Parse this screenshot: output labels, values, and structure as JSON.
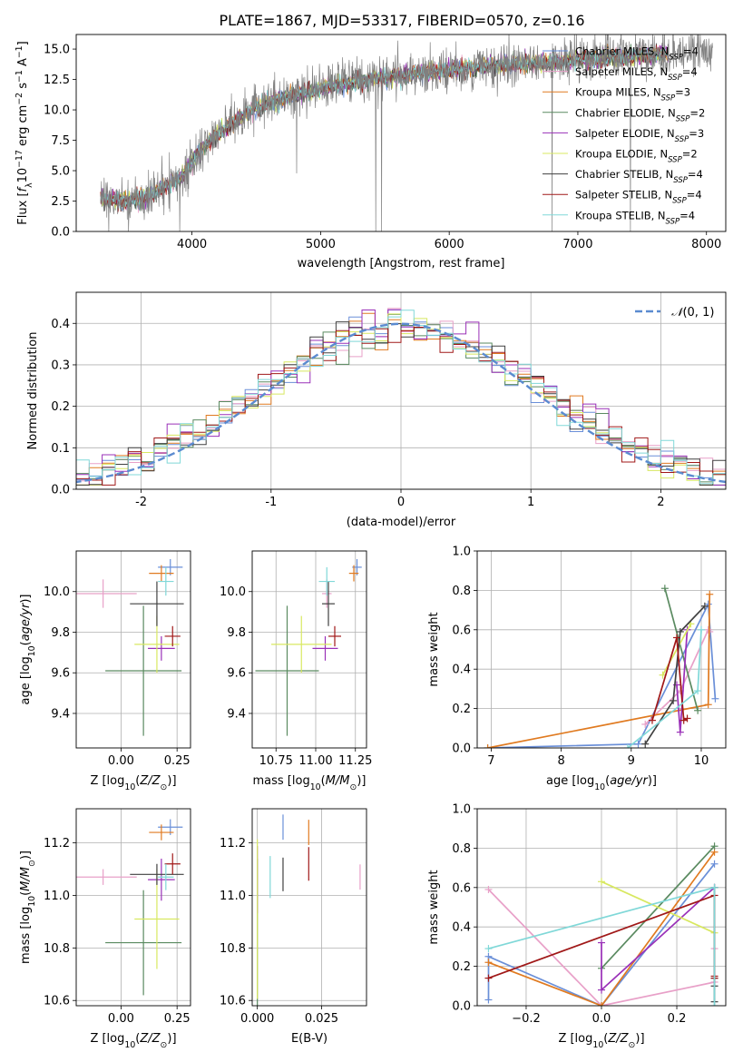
{
  "figure_title": "PLATE=1867, MJD=53317, FIBERID=0570, z=0.16",
  "colors": {
    "Chabrier MILES": "#6a8fd8",
    "Salpeter MILES": "#e8a0c8",
    "Kroupa MILES": "#e07a20",
    "Chabrier ELODIE": "#5a8a60",
    "Salpeter ELODIE": "#9a30b8",
    "Kroupa ELODIE": "#d8e860",
    "Chabrier STELIB": "#404040",
    "Salpeter STELIB": "#a01818",
    "Kroupa STELIB": "#80d8d8",
    "data": "#808080",
    "normal": "#5b8bd0",
    "grid": "#b0b0b0"
  },
  "chart_data": [
    {
      "id": "spectrum",
      "type": "line",
      "xlabel": "wavelength [Angstrom, rest frame]",
      "ylabel": "Flux [f_λ 10^-17 erg cm^-2 s^-1 A^-1]",
      "xlim": [
        3100,
        8150
      ],
      "ylim": [
        0,
        16.2
      ],
      "xticks": [
        4000,
        5000,
        6000,
        7000,
        8000
      ],
      "yticks": [
        0.0,
        2.5,
        5.0,
        7.5,
        10.0,
        12.5,
        15.0
      ],
      "ytick_labels": [
        "0.0",
        "2.5",
        "5.0",
        "7.5",
        "10.0",
        "12.5",
        "15.0"
      ],
      "grid": false,
      "legend_position": "right",
      "legend": [
        {
          "base": "Chabrier MILES, N",
          "sub": "SSP",
          "tail": "=4"
        },
        {
          "base": "Salpeter MILES, N",
          "sub": "SSP",
          "tail": "=4"
        },
        {
          "base": "Kroupa MILES, N",
          "sub": "SSP",
          "tail": "=3"
        },
        {
          "base": "Chabrier ELODIE, N",
          "sub": "SSP",
          "tail": "=2"
        },
        {
          "base": "Salpeter ELODIE, N",
          "sub": "SSP",
          "tail": "=3"
        },
        {
          "base": "Kroupa ELODIE, N",
          "sub": "SSP",
          "tail": "=2"
        },
        {
          "base": "Chabrier STELIB, N",
          "sub": "SSP",
          "tail": "=4"
        },
        {
          "base": "Salpeter STELIB, N",
          "sub": "SSP",
          "tail": "=4"
        },
        {
          "base": "Kroupa STELIB, N",
          "sub": "SSP",
          "tail": "=4"
        }
      ],
      "continuum": {
        "x": [
          3300,
          3500,
          3650,
          3800,
          3900,
          4000,
          4100,
          4200,
          4300,
          4400,
          4500,
          4600,
          4800,
          5000,
          5200,
          5400,
          5600,
          5800,
          6000,
          6300,
          6600,
          7000,
          7400,
          7800,
          8000
        ],
        "y": [
          2.6,
          2.5,
          2.9,
          3.6,
          4.4,
          5.6,
          7.0,
          8.0,
          8.8,
          9.6,
          10.2,
          10.6,
          11.2,
          11.8,
          12.2,
          12.5,
          12.8,
          13.1,
          13.3,
          13.6,
          13.8,
          14.1,
          14.4,
          14.7,
          14.5
        ]
      },
      "data_x_range": [
        3290,
        8050
      ],
      "models_x_range": [
        3290,
        7700
      ],
      "spikes": [
        {
          "x": 3505,
          "y": 0.0
        },
        {
          "x": 3905,
          "y": 0.0
        },
        {
          "x": 4815,
          "y": 4.8
        },
        {
          "x": 5430,
          "y": 0.0
        },
        {
          "x": 5475,
          "y": 0.0
        },
        {
          "x": 6800,
          "y": 0.0
        },
        {
          "x": 7410,
          "y": 0.0
        }
      ]
    },
    {
      "id": "residuals",
      "type": "histogram",
      "xlabel": "(data-model)/error",
      "ylabel": "Normed distribution",
      "xlim": [
        -2.5,
        2.5
      ],
      "ylim": [
        0,
        0.475
      ],
      "xticks": [
        -2,
        -1,
        0,
        1,
        2
      ],
      "yticks": [
        0.0,
        0.1,
        0.2,
        0.3,
        0.4
      ],
      "ytick_labels": [
        "0.0",
        "0.1",
        "0.2",
        "0.3",
        "0.4"
      ],
      "grid": true,
      "bin_width": 0.1,
      "legend_position": "top-right",
      "legend_label": "N(0,1)"
    },
    {
      "id": "age_vs_Z",
      "type": "errorbar",
      "xlabel": "Z [log10(Z/Z⊙)]",
      "ylabel": "age [log10(age/yr)]",
      "xlim": [
        -0.2,
        0.31
      ],
      "ylim": [
        9.23,
        10.2
      ],
      "xticks": [
        0.0,
        0.25
      ],
      "xtick_labels": [
        "0.00",
        "0.25"
      ],
      "yticks": [
        9.4,
        9.6,
        9.8,
        10.0
      ],
      "ytick_labels": [
        "9.4",
        "9.6",
        "9.8",
        "10.0"
      ],
      "grid": true
    },
    {
      "id": "age_vs_mass",
      "type": "errorbar",
      "xlabel": "mass [log10(M/M⊙)]",
      "ylabel": "",
      "xlim": [
        10.6,
        11.32
      ],
      "ylim": [
        9.23,
        10.2
      ],
      "xticks": [
        10.75,
        11.0,
        11.25
      ],
      "xtick_labels": [
        "10.75",
        "11.00",
        "11.25"
      ],
      "yticks": [
        9.4,
        9.6,
        9.8,
        10.0
      ],
      "ytick_labels": [
        "9.4",
        "9.6",
        "9.8",
        "10.0"
      ],
      "grid": true
    },
    {
      "id": "weight_vs_age",
      "type": "line",
      "xlabel": "age [log10(age/yr)]",
      "ylabel": "mass weight",
      "xlim": [
        6.8,
        10.35
      ],
      "ylim": [
        0,
        1.0
      ],
      "xticks": [
        7,
        8,
        9,
        10
      ],
      "yticks": [
        0.0,
        0.2,
        0.4,
        0.6,
        0.8,
        1.0
      ],
      "ytick_labels": [
        "0.0",
        "0.2",
        "0.4",
        "0.6",
        "0.8",
        "1.0"
      ],
      "grid": true
    },
    {
      "id": "mass_vs_Z",
      "type": "errorbar",
      "xlabel": "Z [log10(Z/Z⊙)]",
      "ylabel": "mass [log10(M/M⊙)]",
      "xlim": [
        -0.2,
        0.31
      ],
      "ylim": [
        10.58,
        11.33
      ],
      "xticks": [
        0.0,
        0.25
      ],
      "xtick_labels": [
        "0.00",
        "0.25"
      ],
      "yticks": [
        10.6,
        10.8,
        11.0,
        11.2
      ],
      "ytick_labels": [
        "10.6",
        "10.8",
        "11.0",
        "11.2"
      ],
      "grid": true
    },
    {
      "id": "mass_vs_ebv",
      "type": "errorbar",
      "xlabel": "E(B-V)",
      "ylabel": "",
      "xlim": [
        -0.002,
        0.0425
      ],
      "ylim": [
        10.58,
        11.33
      ],
      "xticks": [
        0.0,
        0.025
      ],
      "xtick_labels": [
        "0.000",
        "0.025"
      ],
      "yticks": [
        10.6,
        10.8,
        11.0,
        11.2
      ],
      "ytick_labels": [
        "10.6",
        "10.8",
        "11.0",
        "11.2"
      ],
      "grid": true
    },
    {
      "id": "weight_vs_Z",
      "type": "line",
      "xlabel": "Z [log10(Z/Z⊙)]",
      "ylabel": "mass weight",
      "xlim": [
        -0.33,
        0.33
      ],
      "ylim": [
        0,
        1.0
      ],
      "xticks": [
        -0.2,
        0.0,
        0.2
      ],
      "xtick_labels": [
        "−0.2",
        "0.0",
        "0.2"
      ],
      "yticks": [
        0.0,
        0.2,
        0.4,
        0.6,
        0.8,
        1.0
      ],
      "ytick_labels": [
        "0.0",
        "0.2",
        "0.4",
        "0.6",
        "0.8",
        "1.0"
      ],
      "grid": true
    }
  ],
  "models": [
    {
      "name": "Chabrier MILES",
      "Z": 0.22,
      "Zerr": 0.055,
      "age": 10.12,
      "ageErr": 0.04,
      "mass": 11.26,
      "massErr": 0.03,
      "ebv": 0.01,
      "ebvErr": 0.05,
      "ages": [
        6.95,
        9.1,
        10.1,
        10.2
      ],
      "age_w": [
        0.0,
        0.02,
        0.73,
        0.25
      ],
      "Zs": [
        -0.3,
        -0.3,
        0.0,
        0.3
      ],
      "Z_w": [
        0.03,
        0.25,
        0.0,
        0.72
      ]
    },
    {
      "name": "Salpeter MILES",
      "Z": -0.08,
      "Zerr": 0.15,
      "age": 9.99,
      "ageErr": 0.07,
      "mass": 11.07,
      "massErr": 0.03,
      "ebv": 0.04,
      "ebvErr": 0.11,
      "ages": [
        9.2,
        9.7,
        10.1,
        10.12
      ],
      "age_w": [
        0.12,
        0.29,
        0.6,
        0.59
      ],
      "Zs": [
        -0.3,
        0.0,
        0.3,
        0.3
      ],
      "Z_w": [
        0.59,
        0.0,
        0.12,
        0.29
      ]
    },
    {
      "name": "Kroupa MILES",
      "Z": 0.18,
      "Zerr": 0.055,
      "age": 10.09,
      "ageErr": 0.04,
      "mass": 11.24,
      "massErr": 0.03,
      "ebv": 0.02,
      "ebvErr": 0.08,
      "ages": [
        6.95,
        10.1,
        10.12
      ],
      "age_w": [
        0.0,
        0.22,
        0.78
      ],
      "Zs": [
        -0.3,
        0.0,
        0.3
      ],
      "Z_w": [
        0.22,
        0.0,
        0.78
      ]
    },
    {
      "name": "Chabrier ELODIE",
      "Z": 0.1,
      "Zerr": 0.17,
      "age": 9.61,
      "ageErr": 0.32,
      "mass": 10.82,
      "massErr": 0.2,
      "ebv": 0.0,
      "ebvErr": 0.2,
      "ages": [
        9.48,
        9.95
      ],
      "age_w": [
        0.81,
        0.19
      ],
      "Zs": [
        0.0,
        0.3
      ],
      "Z_w": [
        0.19,
        0.81
      ]
    },
    {
      "name": "Salpeter ELODIE",
      "Z": 0.18,
      "Zerr": 0.06,
      "age": 9.72,
      "ageErr": 0.06,
      "mass": 11.06,
      "massErr": 0.08,
      "ebv": 0.0,
      "ebvErr": 0.08,
      "ages": [
        9.65,
        9.7,
        9.8
      ],
      "age_w": [
        0.32,
        0.08,
        0.6
      ],
      "Zs": [
        0.0,
        0.0,
        0.3
      ],
      "Z_w": [
        0.32,
        0.08,
        0.6
      ]
    },
    {
      "name": "Kroupa ELODIE",
      "Z": 0.16,
      "Zerr": 0.1,
      "age": 9.74,
      "ageErr": 0.14,
      "mass": 10.91,
      "massErr": 0.19,
      "ebv": 0.0,
      "ebvErr": 0.2,
      "ages": [
        9.45,
        9.85
      ],
      "age_w": [
        0.37,
        0.63
      ],
      "Zs": [
        0.0,
        0.3
      ],
      "Z_w": [
        0.63,
        0.37
      ]
    },
    {
      "name": "Chabrier STELIB",
      "Z": 0.16,
      "Zerr": 0.12,
      "age": 9.94,
      "ageErr": 0.11,
      "mass": 11.08,
      "massErr": 0.04,
      "ebv": 0.01,
      "ebvErr": 0.07,
      "ages": [
        9.2,
        9.6,
        9.7,
        10.05
      ],
      "age_w": [
        0.02,
        0.24,
        0.59,
        0.72
      ],
      "Zs": [
        0.3,
        0.3,
        0.3,
        0.3
      ],
      "Z_w": [
        0.02,
        0.1,
        0.14,
        0.6
      ]
    },
    {
      "name": "Salpeter STELIB",
      "Z": 0.23,
      "Zerr": 0.035,
      "age": 9.78,
      "ageErr": 0.05,
      "mass": 11.12,
      "massErr": 0.04,
      "ebv": 0.02,
      "ebvErr": 0.08,
      "ages": [
        9.3,
        9.65,
        9.75,
        9.8
      ],
      "age_w": [
        0.14,
        0.56,
        0.14,
        0.15
      ],
      "Zs": [
        -0.3,
        0.3,
        0.3,
        0.3
      ],
      "Z_w": [
        0.14,
        0.56,
        0.14,
        0.15
      ]
    },
    {
      "name": "Kroupa STELIB",
      "Z": 0.2,
      "Zerr": 0.035,
      "age": 10.05,
      "ageErr": 0.07,
      "mass": 11.07,
      "massErr": 0.05,
      "ebv": 0.005,
      "ebvErr": 0.06,
      "ages": [
        8.95,
        9.95,
        10.0
      ],
      "age_w": [
        0.0,
        0.29,
        0.6
      ],
      "Zs": [
        -0.3,
        0.3,
        0.3
      ],
      "Z_w": [
        0.29,
        0.6,
        0.0
      ]
    }
  ]
}
